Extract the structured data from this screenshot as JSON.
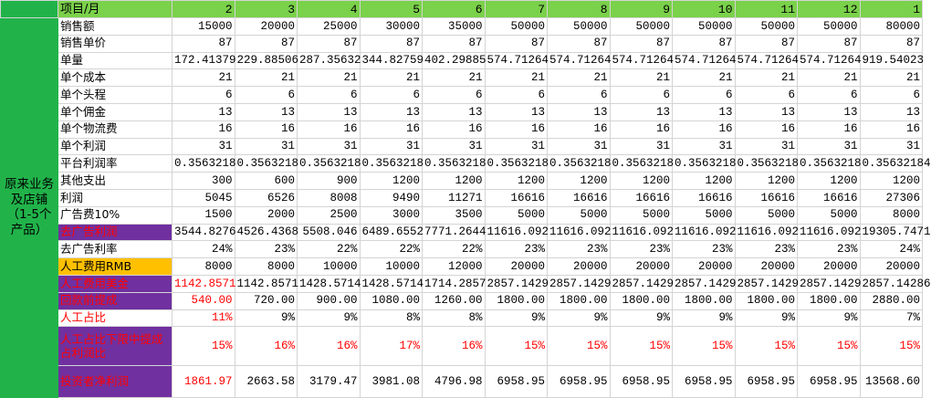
{
  "table": {
    "corner": "项目/月",
    "months": [
      "2",
      "3",
      "4",
      "5",
      "6",
      "7",
      "8",
      "9",
      "10",
      "11",
      "12",
      "1"
    ],
    "side_label": "原来业务及店铺（1-5个产品）",
    "header_color": "#7ad14a",
    "side_color": "#21b34a",
    "rows": [
      {
        "label": "销售额",
        "values": [
          "15000",
          "20000",
          "25000",
          "30000",
          "35000",
          "50000",
          "50000",
          "50000",
          "50000",
          "50000",
          "50000",
          "80000"
        ]
      },
      {
        "label": "销售单价",
        "values": [
          "87",
          "87",
          "87",
          "87",
          "87",
          "87",
          "87",
          "87",
          "87",
          "87",
          "87",
          "87"
        ]
      },
      {
        "label": "单量",
        "values": [
          "172.41379",
          "229.88506",
          "287.35632",
          "344.82759",
          "402.29885",
          "574.71264",
          "574.71264",
          "574.71264",
          "574.71264",
          "574.71264",
          "574.71264",
          "919.54023"
        ]
      },
      {
        "label": "单个成本",
        "values": [
          "21",
          "21",
          "21",
          "21",
          "21",
          "21",
          "21",
          "21",
          "21",
          "21",
          "21",
          "21"
        ]
      },
      {
        "label": "单个头程",
        "values": [
          "6",
          "6",
          "6",
          "6",
          "6",
          "6",
          "6",
          "6",
          "6",
          "6",
          "6",
          "6"
        ]
      },
      {
        "label": "单个佣金",
        "values": [
          "13",
          "13",
          "13",
          "13",
          "13",
          "13",
          "13",
          "13",
          "13",
          "13",
          "13",
          "13"
        ]
      },
      {
        "label": "单个物流费",
        "values": [
          "16",
          "16",
          "16",
          "16",
          "16",
          "16",
          "16",
          "16",
          "16",
          "16",
          "16",
          "16"
        ]
      },
      {
        "label": "单个利润",
        "values": [
          "31",
          "31",
          "31",
          "31",
          "31",
          "31",
          "31",
          "31",
          "31",
          "31",
          "31",
          "31"
        ]
      },
      {
        "label": "平台利润率",
        "values": [
          "0.3563218",
          "0.3563218",
          "0.3563218",
          "0.3563218",
          "0.3563218",
          "0.3563218",
          "0.3563218",
          "0.3563218",
          "0.3563218",
          "0.3563218",
          "0.3563218",
          "0.35632184"
        ]
      },
      {
        "label": "其他支出",
        "values": [
          "300",
          "600",
          "900",
          "1200",
          "1200",
          "1200",
          "1200",
          "1200",
          "1200",
          "1200",
          "1200",
          "1200"
        ]
      },
      {
        "label": "利润",
        "values": [
          "5045",
          "6526",
          "8008",
          "9490",
          "11271",
          "16616",
          "16616",
          "16616",
          "16616",
          "16616",
          "16616",
          "27306"
        ]
      },
      {
        "label": "广告费10%",
        "values": [
          "1500",
          "2000",
          "2500",
          "3000",
          "3500",
          "5000",
          "5000",
          "5000",
          "5000",
          "5000",
          "5000",
          "8000"
        ]
      },
      {
        "label": "去广告利润",
        "label_background": "#7030a0",
        "label_color": "#ff0000",
        "values": [
          "3544.8276",
          "4526.4368",
          "5508.046",
          "6489.6552",
          "7771.2644",
          "11616.092",
          "11616.092",
          "11616.092",
          "11616.092",
          "11616.092",
          "11616.092",
          "19305.7471"
        ]
      },
      {
        "label": "去广告利率",
        "values": [
          "24%",
          "23%",
          "22%",
          "22%",
          "22%",
          "23%",
          "23%",
          "23%",
          "23%",
          "23%",
          "23%",
          "24%"
        ]
      },
      {
        "label": "人工费用RMB",
        "label_background": "#ffc000",
        "values": [
          "8000",
          "8000",
          "10000",
          "10000",
          "12000",
          "20000",
          "20000",
          "20000",
          "20000",
          "20000",
          "20000",
          "20000"
        ]
      },
      {
        "label": "人工费用美金",
        "label_background": "#7030a0",
        "label_color": "#ff0000",
        "first_value_color": "#ff0000",
        "values": [
          "1142.8571",
          "1142.8571",
          "1428.5714",
          "1428.5714",
          "1714.2857",
          "2857.1429",
          "2857.1429",
          "2857.1429",
          "2857.1429",
          "2857.1429",
          "2857.1429",
          "2857.14286"
        ]
      },
      {
        "label": "回款前提成",
        "label_background": "#7030a0",
        "label_color": "#ff0000",
        "first_value_color": "#ff0000",
        "values": [
          "540.00",
          "720.00",
          "900.00",
          "1080.00",
          "1260.00",
          "1800.00",
          "1800.00",
          "1800.00",
          "1800.00",
          "1800.00",
          "1800.00",
          "2880.00"
        ]
      },
      {
        "label": "人工占比",
        "label_color": "#ff0000",
        "first_value_color": "#ff0000",
        "values": [
          "11%",
          "9%",
          "9%",
          "8%",
          "8%",
          "9%",
          "9%",
          "9%",
          "9%",
          "9%",
          "9%",
          "7%"
        ]
      },
      {
        "label": "人工占比下限中提成占利润比",
        "label_background": "#7030a0",
        "label_color": "#ff0000",
        "value_color": "#ff0000",
        "values": [
          "15%",
          "16%",
          "16%",
          "17%",
          "16%",
          "15%",
          "15%",
          "15%",
          "15%",
          "15%",
          "15%",
          "15%"
        ]
      },
      {
        "label": "投资者净利润",
        "label_background": "#7030a0",
        "label_color": "#ff0000",
        "first_value_color": "#ff0000",
        "values": [
          "1861.97",
          "2663.58",
          "3179.47",
          "3981.08",
          "4796.98",
          "6958.95",
          "6958.95",
          "6958.95",
          "6958.95",
          "6958.95",
          "6958.95",
          "13568.60"
        ]
      }
    ]
  }
}
